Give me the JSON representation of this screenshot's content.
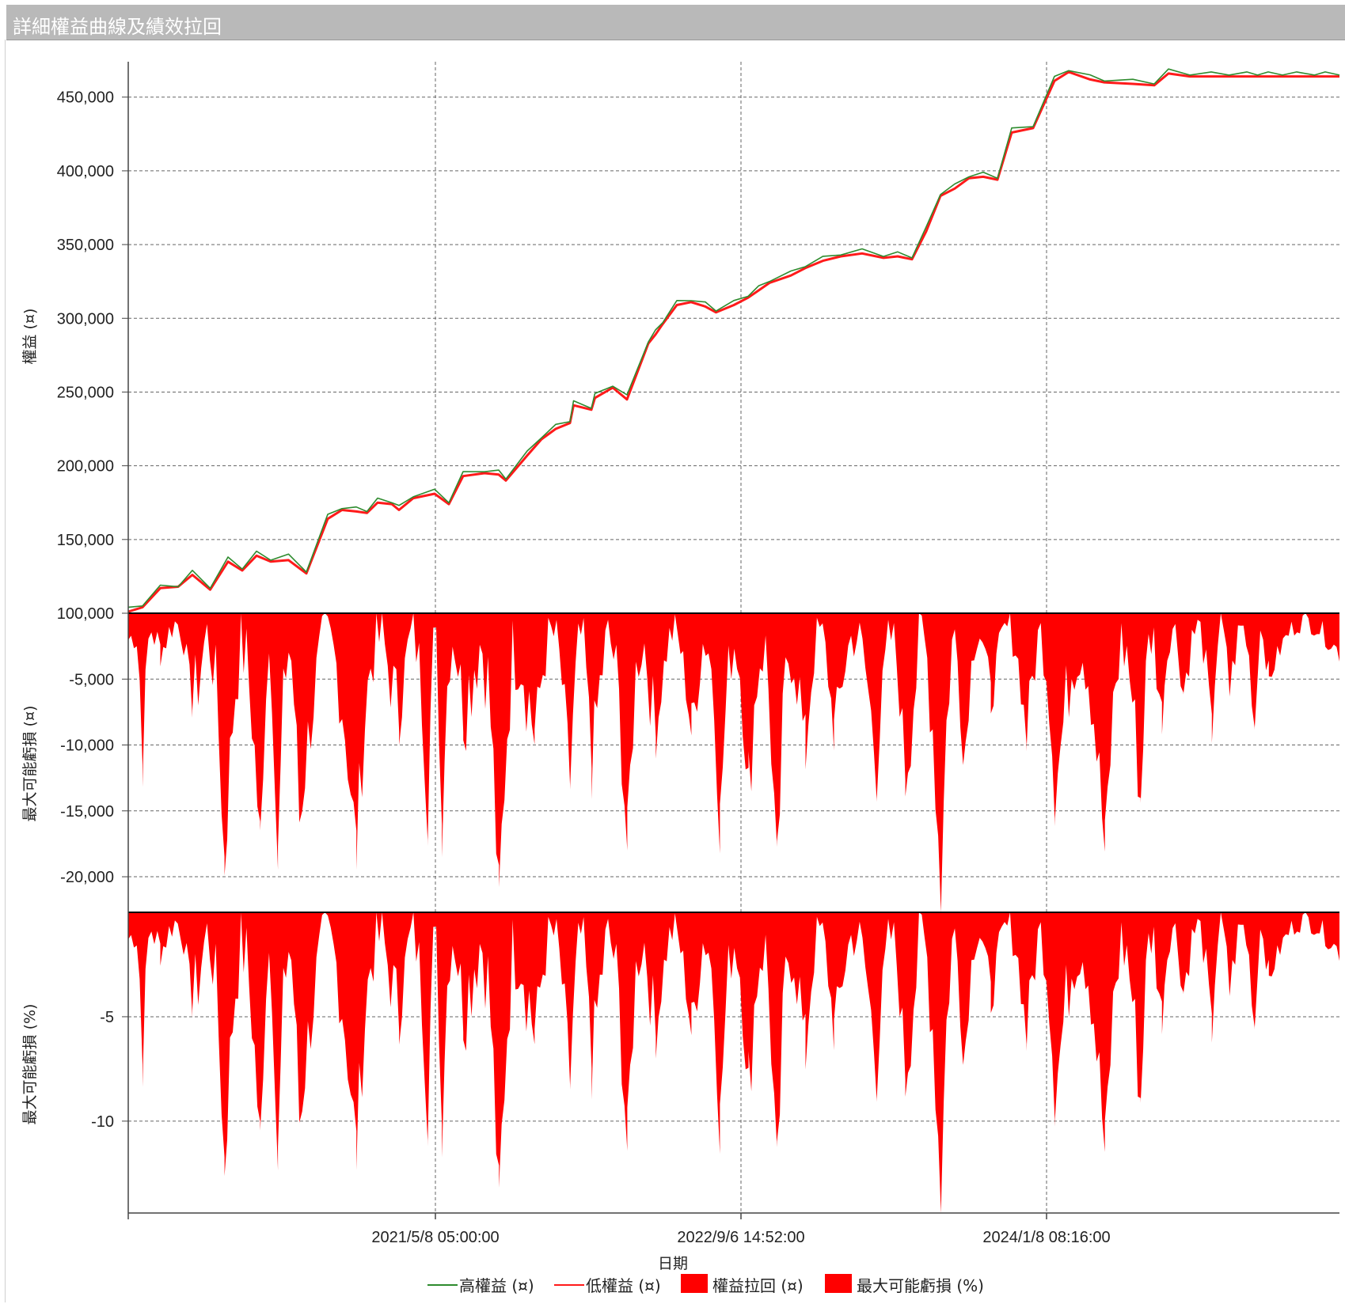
{
  "window": {
    "title": "詳細權益曲線及績效拉回"
  },
  "colors": {
    "equity_high": "#2e8b2e",
    "equity_low": "#ff1a1a",
    "fill": "#ff0000",
    "grid": "#666666",
    "title_bg": "#b9b9b9"
  },
  "chart_data": [
    {
      "type": "line",
      "ylabel": "權益 (¤)",
      "yticks": [
        100000,
        150000,
        200000,
        250000,
        300000,
        350000,
        400000,
        450000
      ],
      "ytick_labels": [
        "100,000",
        "150,000",
        "200,000",
        "250,000",
        "300,000",
        "350,000",
        "400,000",
        "450,000"
      ],
      "ylim": [
        100000,
        474000
      ],
      "x_index": [
        0,
        20,
        45,
        70,
        90,
        115,
        140,
        160,
        180,
        200,
        225,
        250,
        280,
        300,
        320,
        335,
        350,
        370,
        380,
        400,
        430,
        450,
        470,
        500,
        520,
        530,
        560,
        580,
        600,
        620,
        625,
        650,
        655,
        680,
        700,
        730,
        740,
        750,
        770,
        790,
        810,
        825,
        850,
        870,
        885,
        900,
        930,
        950,
        975,
        1000,
        1030,
        1060,
        1080,
        1100,
        1120,
        1140,
        1160,
        1180,
        1200,
        1220,
        1240,
        1270,
        1300,
        1320,
        1350,
        1370,
        1410,
        1440,
        1460,
        1490,
        1520,
        1545,
        1570,
        1585,
        1600,
        1620,
        1640,
        1665,
        1680,
        1700
      ],
      "series": [
        {
          "name": "高權益 (¤)",
          "values": [
            103000,
            106000,
            118000,
            119000,
            128000,
            118000,
            137000,
            131000,
            141000,
            137000,
            139000,
            129000,
            166000,
            172000,
            171000,
            170000,
            177000,
            176000,
            172000,
            180000,
            183000,
            176000,
            195000,
            197000,
            196000,
            192000,
            209000,
            220000,
            227000,
            231000,
            243000,
            240000,
            248000,
            255000,
            247000,
            285000,
            291000,
            298000,
            311000,
            313000,
            310000,
            306000,
            311000,
            316000,
            321000,
            326000,
            331000,
            336000,
            341000,
            344000,
            346000,
            343000,
            344000,
            342000,
            361000,
            385000,
            390000,
            397000,
            398000,
            396000,
            428000,
            431000,
            463000,
            469000,
            464000,
            462000,
            461000,
            460000,
            468000,
            466000,
            466000,
            466000,
            466000,
            466000,
            466000,
            466000,
            466000,
            466000,
            466000,
            466000
          ]
        },
        {
          "name": "低權益 (¤)",
          "values": [
            101000,
            104000,
            117000,
            118000,
            126000,
            116000,
            135000,
            129000,
            139000,
            135000,
            136000,
            127000,
            164000,
            170000,
            169000,
            168000,
            175000,
            174000,
            170000,
            178000,
            181000,
            174000,
            193000,
            195000,
            194000,
            190000,
            207000,
            218000,
            225000,
            229000,
            241000,
            238000,
            246000,
            253000,
            245000,
            283000,
            289000,
            296000,
            309000,
            311000,
            308000,
            304000,
            309000,
            314000,
            319000,
            324000,
            329000,
            334000,
            339000,
            342000,
            344000,
            341000,
            342000,
            340000,
            359000,
            383000,
            388000,
            395000,
            396000,
            394000,
            426000,
            429000,
            461000,
            467000,
            462000,
            460000,
            459000,
            458000,
            466000,
            464000,
            464000,
            464000,
            464000,
            464000,
            464000,
            464000,
            464000,
            464000,
            464000,
            464000
          ]
        }
      ]
    },
    {
      "type": "area",
      "ylabel": "最大可能虧損 (¤)",
      "yticks": [
        -5000,
        -10000,
        -15000,
        -20000
      ],
      "ytick_labels": [
        "-5,000",
        "-10,000",
        "-15,000",
        "-20,000"
      ],
      "ylim": [
        -22700,
        0
      ],
      "series": [
        {
          "name": "權益拉回 (¤)",
          "dips": [
            [
              0,
              -2000
            ],
            [
              20,
              -11500
            ],
            [
              45,
              -3000
            ],
            [
              90,
              -7000
            ],
            [
              135,
              -18800
            ],
            [
              185,
              -17500
            ],
            [
              210,
              -18900
            ],
            [
              240,
              -15500
            ],
            [
              320,
              -18000
            ],
            [
              380,
              -7500
            ],
            [
              420,
              -15000
            ],
            [
              440,
              -16000
            ],
            [
              470,
              -7000
            ],
            [
              520,
              -22500
            ],
            [
              570,
              -9000
            ],
            [
              620,
              -13000
            ],
            [
              650,
              -11500
            ],
            [
              700,
              -17800
            ],
            [
              740,
              -9500
            ],
            [
              790,
              -9000
            ],
            [
              830,
              -15800
            ],
            [
              870,
              -13000
            ],
            [
              910,
              -20500
            ],
            [
              950,
              -11000
            ],
            [
              990,
              -9000
            ],
            [
              1050,
              -12500
            ],
            [
              1090,
              -12000
            ],
            [
              1140,
              -21800
            ],
            [
              1175,
              -9500
            ],
            [
              1210,
              -6500
            ],
            [
              1260,
              -9500
            ],
            [
              1300,
              -14000
            ],
            [
              1370,
              -18200
            ],
            [
              1420,
              -14000
            ],
            [
              1450,
              -8000
            ],
            [
              1480,
              -6000
            ],
            [
              1520,
              -9000
            ],
            [
              1545,
              -6000
            ],
            [
              1580,
              -8500
            ],
            [
              1600,
              -5000
            ],
            [
              1699,
              -3000
            ]
          ]
        }
      ]
    },
    {
      "type": "area",
      "ylabel": "最大可能虧損 (%)",
      "yticks": [
        -5,
        -10
      ],
      "ytick_labels": [
        "-5",
        "-10"
      ],
      "ylim": [
        -14.4,
        0
      ],
      "series": [
        {
          "name": "最大可能虧損 (%)",
          "dips": [
            [
              0,
              -2000
            ],
            [
              20,
              -11500
            ],
            [
              45,
              -3000
            ],
            [
              90,
              -7000
            ],
            [
              135,
              -18800
            ],
            [
              185,
              -17500
            ],
            [
              210,
              -18900
            ],
            [
              240,
              -15500
            ],
            [
              320,
              -18000
            ],
            [
              380,
              -7500
            ],
            [
              420,
              -15000
            ],
            [
              440,
              -16000
            ],
            [
              470,
              -7000
            ],
            [
              520,
              -22500
            ],
            [
              570,
              -9000
            ],
            [
              620,
              -13000
            ],
            [
              650,
              -11500
            ],
            [
              700,
              -17800
            ],
            [
              740,
              -9500
            ],
            [
              790,
              -9000
            ],
            [
              830,
              -15800
            ],
            [
              870,
              -13000
            ],
            [
              910,
              -20500
            ],
            [
              950,
              -11000
            ],
            [
              990,
              -9000
            ],
            [
              1050,
              -12500
            ],
            [
              1090,
              -12000
            ],
            [
              1140,
              -21800
            ],
            [
              1175,
              -9500
            ],
            [
              1210,
              -6500
            ],
            [
              1260,
              -9500
            ],
            [
              1300,
              -14000
            ],
            [
              1370,
              -18200
            ],
            [
              1420,
              -14000
            ],
            [
              1450,
              -8000
            ],
            [
              1480,
              -6000
            ],
            [
              1520,
              -9000
            ],
            [
              1545,
              -6000
            ],
            [
              1580,
              -8500
            ],
            [
              1600,
              -5000
            ],
            [
              1699,
              -3000
            ]
          ]
        }
      ]
    }
  ],
  "x_axis": {
    "label": "日期",
    "ticks": [
      "2021/5/8 05:00:00",
      "2022/9/6 14:52:00",
      "2024/1/8 08:16:00"
    ]
  },
  "legend": [
    {
      "label": "高權益 (¤)",
      "kind": "line",
      "color": "#2e8b2e"
    },
    {
      "label": "低權益 (¤)",
      "kind": "line",
      "color": "#ff1a1a"
    },
    {
      "label": "權益拉回 (¤)",
      "kind": "box",
      "color": "#ff0000"
    },
    {
      "label": "最大可能虧損 (%)",
      "kind": "box",
      "color": "#ff0000"
    }
  ]
}
